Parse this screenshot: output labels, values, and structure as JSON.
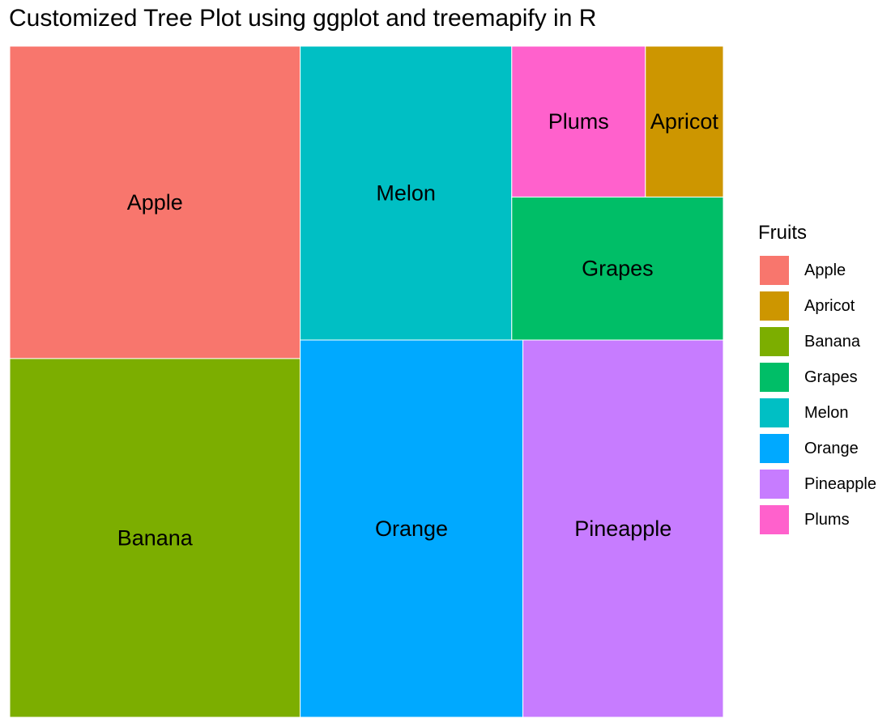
{
  "chart_data": {
    "type": "treemap",
    "title": "Customized Tree Plot using ggplot and treemapify in R",
    "legend": {
      "title": "Fruits",
      "position": "right"
    },
    "items": [
      {
        "name": "Apple",
        "value": 27,
        "color": "#F8766D"
      },
      {
        "name": "Banana",
        "value": 31,
        "color": "#7CAE00"
      },
      {
        "name": "Melon",
        "value": 18.5,
        "color": "#00BFC4"
      },
      {
        "name": "Orange",
        "value": 25,
        "color": "#00A9FF"
      },
      {
        "name": "Pineapple",
        "value": 22.5,
        "color": "#C77CFF"
      },
      {
        "name": "Grapes",
        "value": 9,
        "color": "#00BE67"
      },
      {
        "name": "Plums",
        "value": 6,
        "color": "#FF61CC"
      },
      {
        "name": "Apricot",
        "value": 3.5,
        "color": "#CD9600"
      }
    ],
    "legend_order": [
      "Apple",
      "Apricot",
      "Banana",
      "Grapes",
      "Melon",
      "Orange",
      "Pineapple",
      "Plums"
    ]
  }
}
